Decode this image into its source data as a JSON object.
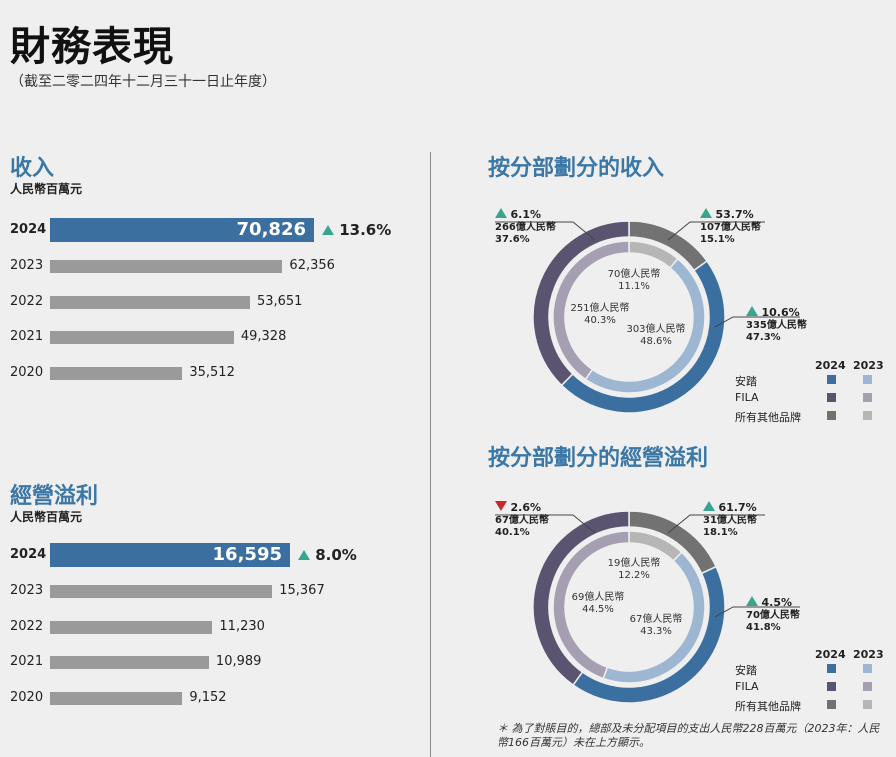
{
  "title": "財務表現",
  "subtitle": "（截至二零二四年十二月三十一日止年度）",
  "colors": {
    "anta": "#3b6f9f",
    "fila": "#5b5470",
    "others": "#727272",
    "anta_prev": "#9db6d2",
    "fila_prev": "#a69fb2",
    "others_prev": "#b6b6b6",
    "up": "#3aa58f",
    "down": "#c8282d"
  },
  "revenue": {
    "title": "收入",
    "unit": "人民幣百萬元",
    "growth": "13.6%",
    "direction": "up",
    "rows": [
      {
        "year": "2024",
        "value": "70,826",
        "num": 70826
      },
      {
        "year": "2023",
        "value": "62,356",
        "num": 62356
      },
      {
        "year": "2022",
        "value": "53,651",
        "num": 53651
      },
      {
        "year": "2021",
        "value": "49,328",
        "num": 49328
      },
      {
        "year": "2020",
        "value": "35,512",
        "num": 35512
      }
    ]
  },
  "op_profit": {
    "title": "經營溢利",
    "unit": "人民幣百萬元",
    "growth": "8.0%",
    "direction": "up",
    "rows": [
      {
        "year": "2024",
        "value": "16,595",
        "num": 16595
      },
      {
        "year": "2023",
        "value": "15,367",
        "num": 15367
      },
      {
        "year": "2022",
        "value": "11,230",
        "num": 11230
      },
      {
        "year": "2021",
        "value": "10,989",
        "num": 10989
      },
      {
        "year": "2020",
        "value": "9,152",
        "num": 9152
      }
    ]
  },
  "seg_revenue": {
    "title": "按分部劃分的收入",
    "outer": [
      {
        "brand": "安踏",
        "amount": "335億人民幣",
        "share": "47.3%",
        "share_num": 47.3,
        "growth": "10.6%",
        "direction": "up"
      },
      {
        "brand": "FILA",
        "amount": "266億人民幣",
        "share": "37.6%",
        "share_num": 37.6,
        "growth": "6.1%",
        "direction": "up"
      },
      {
        "brand": "所有其他品牌",
        "amount": "107億人民幣",
        "share": "15.1%",
        "share_num": 15.1,
        "growth": "53.7%",
        "direction": "up"
      }
    ],
    "inner": [
      {
        "brand": "安踏",
        "amount": "303億人民幣",
        "share": "48.6%",
        "share_num": 48.6
      },
      {
        "brand": "FILA",
        "amount": "251億人民幣",
        "share": "40.3%",
        "share_num": 40.3
      },
      {
        "brand": "所有其他品牌",
        "amount": "70億人民幣",
        "share": "11.1%",
        "share_num": 11.1
      }
    ]
  },
  "seg_profit": {
    "title": "按分部劃分的經營溢利",
    "outer": [
      {
        "brand": "安踏",
        "amount": "70億人民幣",
        "share": "41.8%",
        "share_num": 41.8,
        "growth": "4.5%",
        "direction": "up"
      },
      {
        "brand": "FILA",
        "amount": "67億人民幣",
        "share": "40.1%",
        "share_num": 40.1,
        "growth": "2.6%",
        "direction": "down"
      },
      {
        "brand": "所有其他品牌",
        "amount": "31億人民幣",
        "share": "18.1%",
        "share_num": 18.1,
        "growth": "61.7%",
        "direction": "up"
      }
    ],
    "inner": [
      {
        "brand": "安踏",
        "amount": "67億人民幣",
        "share": "43.3%",
        "share_num": 43.3
      },
      {
        "brand": "FILA",
        "amount": "69億人民幣",
        "share": "44.5%",
        "share_num": 44.5
      },
      {
        "brand": "所有其他品牌",
        "amount": "19億人民幣",
        "share": "12.2%",
        "share_num": 12.2
      }
    ]
  },
  "legend": {
    "years": [
      "2024",
      "2023"
    ],
    "brands": [
      "安踏",
      "FILA",
      "所有其他品牌"
    ]
  },
  "footnote": "＊ 為了對賬目的，總部及未分配項目的支出人民幣228百萬元（2023年：人民幣166百萬元）未在上方顯示。",
  "chart_data": [
    {
      "type": "bar",
      "title": "收入",
      "ylabel": "人民幣百萬元",
      "categories": [
        "2024",
        "2023",
        "2022",
        "2021",
        "2020"
      ],
      "values": [
        70826,
        62356,
        53651,
        49328,
        35512
      ]
    },
    {
      "type": "bar",
      "title": "經營溢利",
      "ylabel": "人民幣百萬元",
      "categories": [
        "2024",
        "2023",
        "2022",
        "2021",
        "2020"
      ],
      "values": [
        16595,
        15367,
        11230,
        10989,
        9152
      ]
    },
    {
      "type": "pie",
      "title": "按分部劃分的收入",
      "categories": [
        "安踏",
        "FILA",
        "所有其他品牌"
      ],
      "series": [
        {
          "name": "2024",
          "values": [
            47.3,
            37.6,
            15.1
          ]
        },
        {
          "name": "2023",
          "values": [
            48.6,
            40.3,
            11.1
          ]
        }
      ]
    },
    {
      "type": "pie",
      "title": "按分部劃分的經營溢利",
      "categories": [
        "安踏",
        "FILA",
        "所有其他品牌"
      ],
      "series": [
        {
          "name": "2024",
          "values": [
            41.8,
            40.1,
            18.1
          ]
        },
        {
          "name": "2023",
          "values": [
            43.3,
            44.5,
            12.2
          ]
        }
      ]
    }
  ]
}
